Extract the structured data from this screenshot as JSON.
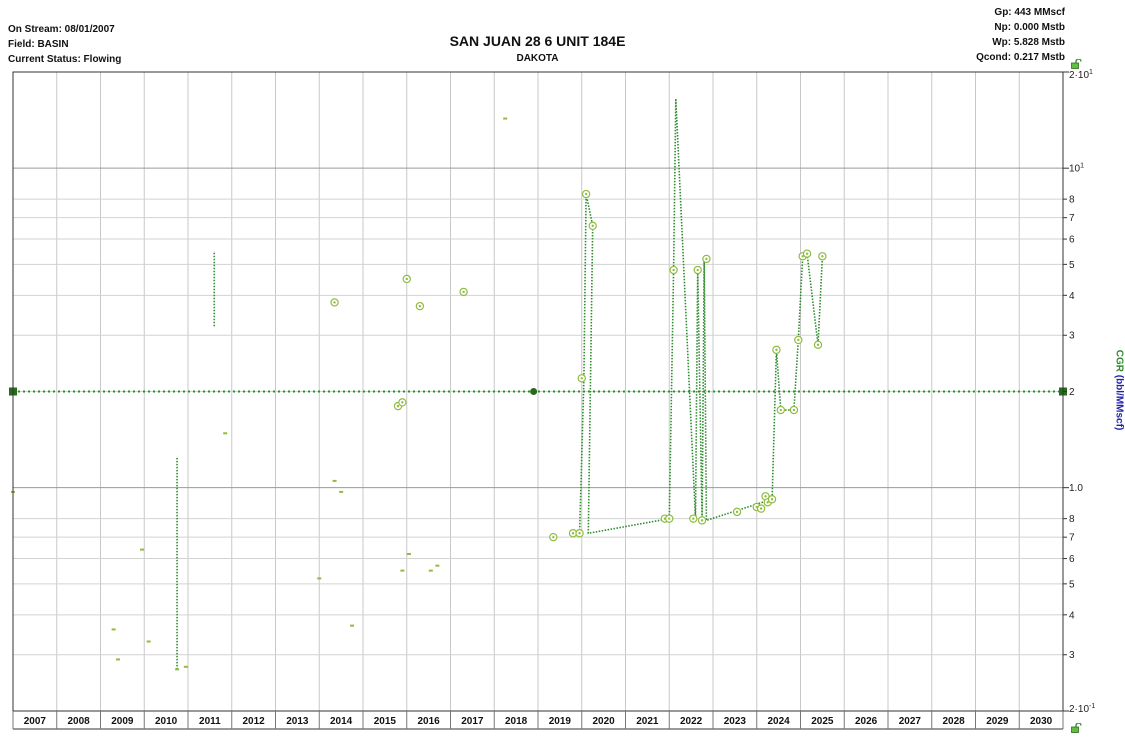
{
  "header": {
    "on_stream": "On Stream: 08/01/2007",
    "field": "Field: BASIN",
    "status": "Current Status: Flowing",
    "gp": "Gp: 443 MMscf",
    "np": "Np: 0.000 Mstb",
    "wp": "Wp: 5.828 Mstb",
    "qcond": "Qcond: 0.217 Mstb"
  },
  "icons": [
    "lock-open-icon"
  ],
  "chart_data": {
    "type": "scatter",
    "title": "SAN JUAN 28 6 UNIT 184E",
    "subtitle": "DAKOTA",
    "ylabel_prefix": "CGR",
    "ylabel_units": "(bbl/MMscf)",
    "y_scale": "log",
    "ylim": [
      0.2,
      20
    ],
    "xlim": [
      2007.0,
      2031.0
    ],
    "grid": true,
    "x_ticks": [
      "2007",
      "2008",
      "2009",
      "2010",
      "2011",
      "2012",
      "2013",
      "2014",
      "2015",
      "2016",
      "2017",
      "2018",
      "2019",
      "2020",
      "2021",
      "2022",
      "2023",
      "2024",
      "2025",
      "2026",
      "2027",
      "2028",
      "2029",
      "2030"
    ],
    "y_tick_labels": [
      {
        "v": 20,
        "mantissa": "2",
        "mid": "·10",
        "sup": "1"
      },
      {
        "v": 10,
        "mantissa": "10",
        "mid": "",
        "sup": "1"
      },
      {
        "v": 8,
        "mantissa": "8"
      },
      {
        "v": 7,
        "mantissa": "7"
      },
      {
        "v": 6,
        "mantissa": "6"
      },
      {
        "v": 5,
        "mantissa": "5"
      },
      {
        "v": 4,
        "mantissa": "4"
      },
      {
        "v": 3,
        "mantissa": "3"
      },
      {
        "v": 2,
        "mantissa": "2"
      },
      {
        "v": 1,
        "mantissa": "1.0"
      },
      {
        "v": 0.8,
        "mantissa": "8"
      },
      {
        "v": 0.7,
        "mantissa": "7"
      },
      {
        "v": 0.6,
        "mantissa": "6"
      },
      {
        "v": 0.5,
        "mantissa": "5"
      },
      {
        "v": 0.4,
        "mantissa": "4"
      },
      {
        "v": 0.3,
        "mantissa": "3"
      },
      {
        "v": 0.2,
        "mantissa": "2",
        "mid": "·10",
        "sup": "-1"
      }
    ],
    "colors": {
      "marker": "#8fbc3f",
      "line": "#2e8b2e",
      "square": "#2a6a20",
      "circle": "#8fbc3f"
    },
    "series": [
      {
        "kind": "dash_markers",
        "points": [
          [
            2007.0,
            0.97
          ],
          [
            2009.3,
            0.36
          ],
          [
            2009.4,
            0.29
          ],
          [
            2009.95,
            0.64
          ],
          [
            2010.1,
            0.33
          ],
          [
            2010.75,
            0.27
          ],
          [
            2010.95,
            0.275
          ],
          [
            2011.85,
            1.48
          ],
          [
            2014.0,
            0.52
          ],
          [
            2014.35,
            1.05
          ],
          [
            2014.5,
            0.97
          ],
          [
            2014.75,
            0.37
          ],
          [
            2015.9,
            0.55
          ],
          [
            2016.05,
            0.62
          ],
          [
            2016.55,
            0.55
          ],
          [
            2016.7,
            0.57
          ],
          [
            2018.25,
            14.3
          ]
        ]
      },
      {
        "kind": "vertical_dotted",
        "segments": [
          {
            "x": 2010.75,
            "y": [
              0.27,
              1.25
            ]
          },
          {
            "x": 2011.6,
            "y": [
              3.2,
              5.5
            ]
          }
        ]
      },
      {
        "kind": "circle_markers",
        "points": [
          [
            2014.35,
            3.8
          ],
          [
            2015.8,
            1.8
          ],
          [
            2015.9,
            1.85
          ],
          [
            2016.0,
            4.5
          ],
          [
            2016.3,
            3.7
          ],
          [
            2017.3,
            4.1
          ],
          [
            2019.35,
            0.7
          ],
          [
            2019.8,
            0.72
          ],
          [
            2019.95,
            0.72
          ],
          [
            2020.0,
            2.2
          ],
          [
            2020.1,
            8.3
          ],
          [
            2020.25,
            6.6
          ],
          [
            2021.9,
            0.8
          ],
          [
            2022.0,
            0.8
          ],
          [
            2022.1,
            4.8
          ],
          [
            2022.55,
            0.8
          ],
          [
            2022.65,
            4.8
          ],
          [
            2022.75,
            0.79
          ],
          [
            2022.85,
            5.2
          ],
          [
            2023.55,
            0.84
          ],
          [
            2024.0,
            0.87
          ],
          [
            2024.1,
            0.86
          ],
          [
            2024.2,
            0.94
          ],
          [
            2024.25,
            0.9
          ],
          [
            2024.35,
            0.92
          ],
          [
            2024.45,
            2.7
          ],
          [
            2024.55,
            1.75
          ],
          [
            2024.85,
            1.75
          ],
          [
            2024.95,
            2.9
          ],
          [
            2025.05,
            5.3
          ],
          [
            2025.15,
            5.4
          ],
          [
            2025.4,
            2.8
          ],
          [
            2025.5,
            5.3
          ]
        ]
      },
      {
        "kind": "connector_dotted",
        "path": [
          [
            2019.95,
            0.72
          ],
          [
            2020.05,
            2.2
          ],
          [
            2020.1,
            8.3
          ],
          [
            2020.25,
            6.6
          ],
          [
            2020.15,
            0.72
          ],
          [
            2022.0,
            0.8
          ],
          [
            2022.1,
            4.8
          ],
          [
            2022.15,
            16.5
          ],
          [
            2022.6,
            0.8
          ],
          [
            2022.65,
            4.8
          ],
          [
            2022.75,
            0.79
          ],
          [
            2022.8,
            5.2
          ],
          [
            2022.85,
            0.79
          ],
          [
            2024.35,
            0.92
          ],
          [
            2024.45,
            2.7
          ],
          [
            2024.55,
            1.75
          ],
          [
            2024.85,
            1.75
          ],
          [
            2024.95,
            2.9
          ],
          [
            2025.05,
            5.3
          ],
          [
            2025.15,
            5.4
          ],
          [
            2025.4,
            2.8
          ],
          [
            2025.5,
            5.3
          ]
        ]
      },
      {
        "kind": "forecast_line",
        "y": 2.0,
        "x": [
          2007.0,
          2031.0
        ],
        "anchors": [
          {
            "x": 2007.0,
            "shape": "square"
          },
          {
            "x": 2018.9,
            "shape": "circle"
          },
          {
            "x": 2031.0,
            "shape": "square"
          }
        ]
      }
    ]
  }
}
